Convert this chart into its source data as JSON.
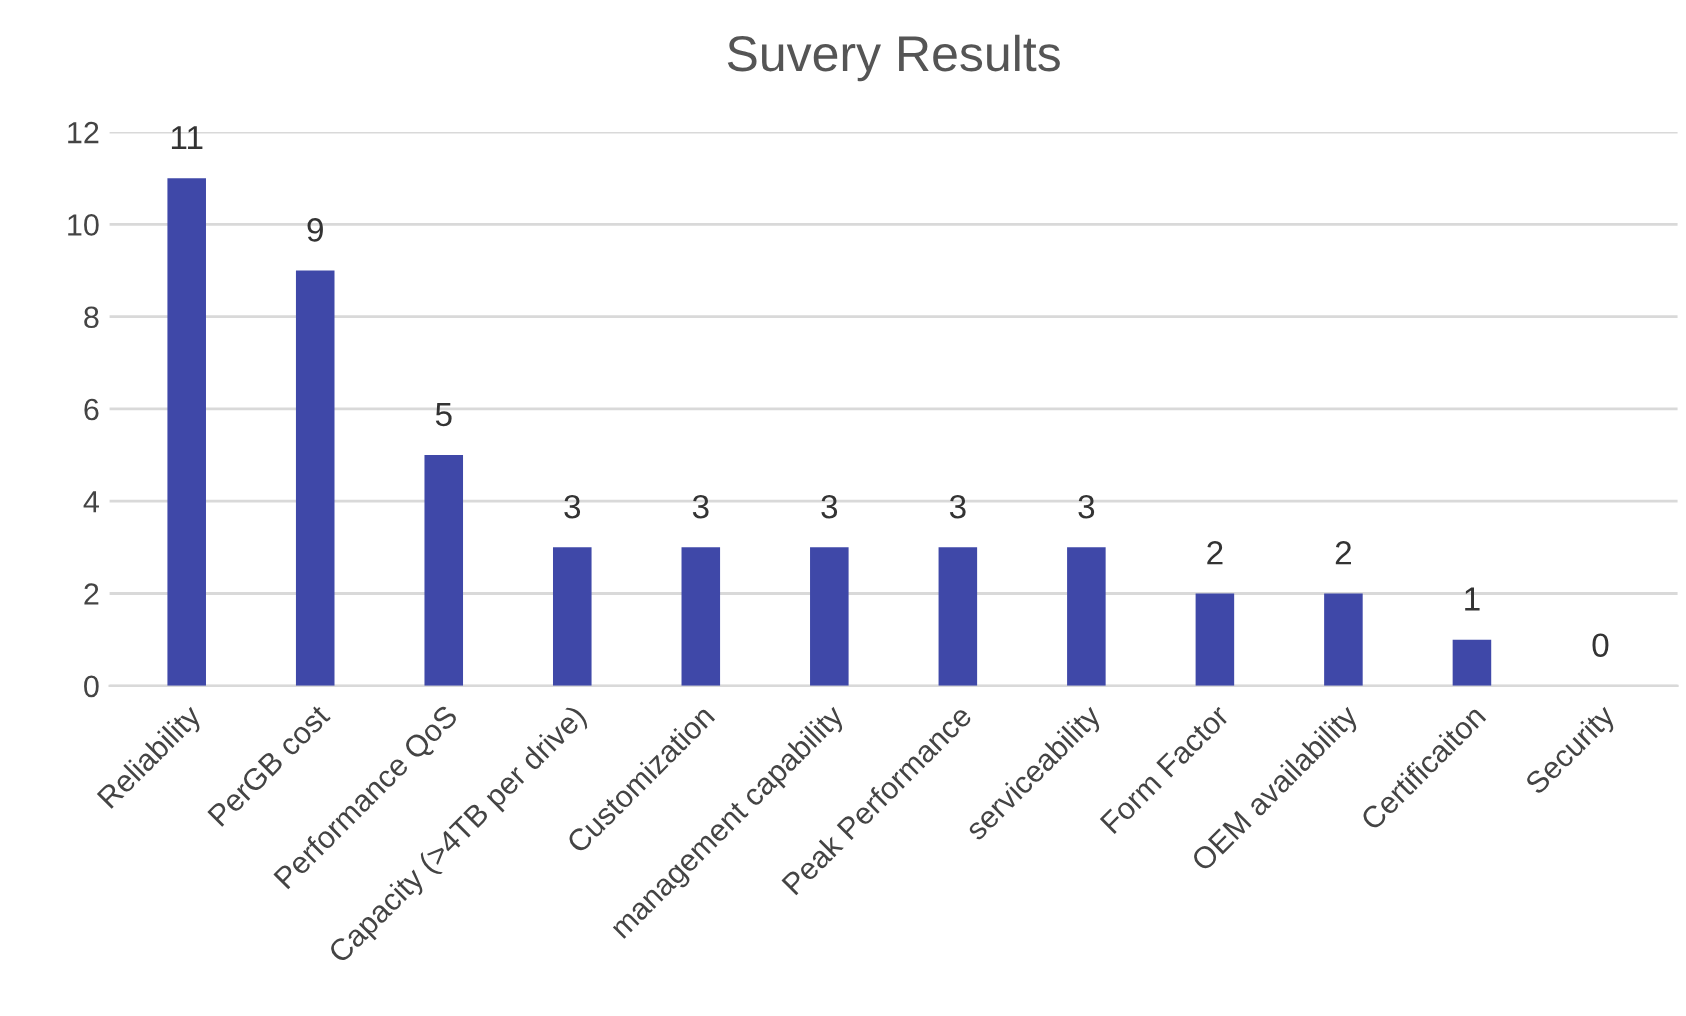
{
  "chart_data": {
    "type": "bar",
    "title": "Suvery Results",
    "categories": [
      "Reliability",
      "PerGB cost",
      "Performance QoS",
      "Capacity (>4TB per drive)",
      "Customization",
      "management capability",
      "Peak Performance",
      "serviceability",
      "Form Factor",
      "OEM availability",
      "Certificaiton",
      "Security"
    ],
    "values": [
      11,
      9,
      5,
      3,
      3,
      3,
      3,
      3,
      2,
      2,
      1,
      0
    ],
    "color": "#3f48a8",
    "ylim": [
      0,
      12
    ],
    "yticks": [
      0,
      2,
      4,
      6,
      8,
      10,
      12
    ],
    "grid": "y",
    "data_labels": true
  }
}
